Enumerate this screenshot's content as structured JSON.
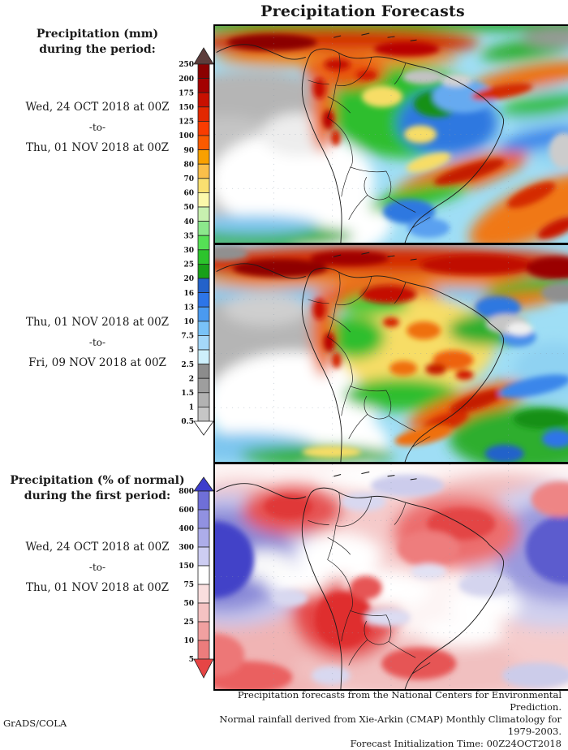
{
  "title": "Precipitation Forecasts",
  "sections": [
    {
      "heading": [
        "Precipitation (mm)",
        "during the period:"
      ],
      "period": [
        "Wed, 24 OCT 2018 at 00Z",
        "-to-",
        "Thu, 01 NOV 2018 at 00Z"
      ]
    },
    {
      "heading": [],
      "period": [
        "Thu, 01 NOV 2018 at 00Z",
        "-to-",
        "Fri, 09 NOV 2018 at 00Z"
      ]
    },
    {
      "heading": [
        "Precipitation (% of normal)",
        "during the first period:"
      ],
      "period": [
        "Wed, 24 OCT 2018 at 00Z",
        "-to-",
        "Thu, 01 NOV 2018 at 00Z"
      ]
    }
  ],
  "colorbar_mm": {
    "labels": [
      "250",
      "200",
      "175",
      "150",
      "125",
      "100",
      "90",
      "80",
      "70",
      "60",
      "50",
      "40",
      "35",
      "30",
      "25",
      "20",
      "16",
      "13",
      "10",
      "7.5",
      "5",
      "2.5",
      "2",
      "1.5",
      "1",
      "0.5"
    ],
    "segment_colors": [
      "#8b0000",
      "#a30000",
      "#c81000",
      "#e32800",
      "#fa3c00",
      "#fa5a00",
      "#f9a000",
      "#fabf4a",
      "#fae070",
      "#fcf8aa",
      "#c8f0b0",
      "#8ce88c",
      "#55e055",
      "#2cc42c",
      "#18a018",
      "#2362ca",
      "#2d75e8",
      "#4a9af0",
      "#79c2f8",
      "#a5d8fa",
      "#cdeffb",
      "#8c8c8c",
      "#9e9e9e",
      "#b2b2b2",
      "#c6c6c6"
    ],
    "arrow_top_color": "#5d3d3b",
    "arrow_bottom_color": "#ffffff"
  },
  "colorbar_pct": {
    "labels": [
      "800",
      "600",
      "400",
      "300",
      "150",
      "75",
      "50",
      "25",
      "10",
      "5"
    ],
    "segment_colors": [
      "#6f6fd8",
      "#9191e1",
      "#adade9",
      "#cdcdf2",
      "#ffffff",
      "#f9dede",
      "#f5c2c2",
      "#f1a0a0",
      "#ec7c7c"
    ],
    "arrow_top_color": "#3d3dcc",
    "arrow_bottom_color": "#e64545"
  },
  "footer": {
    "lines": [
      "Precipitation forecasts from the National Centers for Environmental Prediction.",
      "Normal rainfall derived from Xie-Arkin (CMAP) Monthly Climatology for 1979-2003.",
      "Forecast Initialization Time: 00Z24OCT2018"
    ],
    "credit": "GrADS/COLA"
  },
  "chart_data": [
    {
      "type": "heatmap",
      "subtype": "geographic precipitation field",
      "region": "South America and adjacent oceans",
      "title": "Precipitation (mm) during the period",
      "period_start": "Wed, 24 OCT 2018 at 00Z",
      "period_end": "Thu, 01 NOV 2018 at 00Z",
      "legend_label": "mm",
      "legend_position": "left",
      "legend_values": [
        250,
        200,
        175,
        150,
        125,
        100,
        90,
        80,
        70,
        60,
        50,
        40,
        35,
        30,
        25,
        20,
        16,
        13,
        10,
        7.5,
        5,
        2.5,
        2,
        1.5,
        1,
        0.5
      ],
      "notable_features": [
        "heavy red ITCZ band across the far north",
        "orange/red maxima over Colombia, Venezuela and the Andes",
        "green/blue moderate totals over central Amazonia",
        "orange/red band over southeast Brazil and the southwest Atlantic",
        "dry white/gray zone over the eastern Pacific, coastal Peru, Chile and Argentina"
      ]
    },
    {
      "type": "heatmap",
      "subtype": "geographic precipitation field",
      "region": "South America and adjacent oceans",
      "title": "Precipitation (mm) during the period",
      "period_start": "Thu, 01 NOV 2018 at 00Z",
      "period_end": "Fri, 09 NOV 2018 at 00Z",
      "legend_label": "mm",
      "legend_position": "left",
      "legend_values": [
        250,
        200,
        175,
        150,
        125,
        100,
        90,
        80,
        70,
        60,
        50,
        40,
        35,
        30,
        25,
        20,
        16,
        13,
        10,
        7.5,
        5,
        2.5,
        2,
        1.5,
        1,
        0.5
      ],
      "notable_features": [
        "intense red band along the ITCZ across the whole northern edge",
        "yellow/orange interior Brazil with scattered red cells",
        "green ring around the interior maximum",
        "dry white/gray eastern Pacific and Chile/Argentina",
        "green/blue bands over the southern Atlantic"
      ]
    },
    {
      "type": "heatmap",
      "subtype": "geographic precipitation anomaly field",
      "region": "South America and adjacent oceans",
      "title": "Precipitation (% of normal) during the first period",
      "period_start": "Wed, 24 OCT 2018 at 00Z",
      "period_end": "Thu, 01 NOV 2018 at 00Z",
      "legend_label": "% of normal",
      "legend_position": "left",
      "legend_values": [
        800,
        600,
        400,
        300,
        150,
        75,
        50,
        25,
        10,
        5
      ],
      "notable_features": [
        "deep blue above-normal blobs on the far west and far east ocean edges",
        "red below-normal area over the eastern Pacific",
        "red below-normal region over northern/central Brazil",
        "strong red deficit over Bolivia, northern Chile and western Argentina",
        "red cell near Uruguay; mostly pink/white elsewhere"
      ]
    }
  ]
}
